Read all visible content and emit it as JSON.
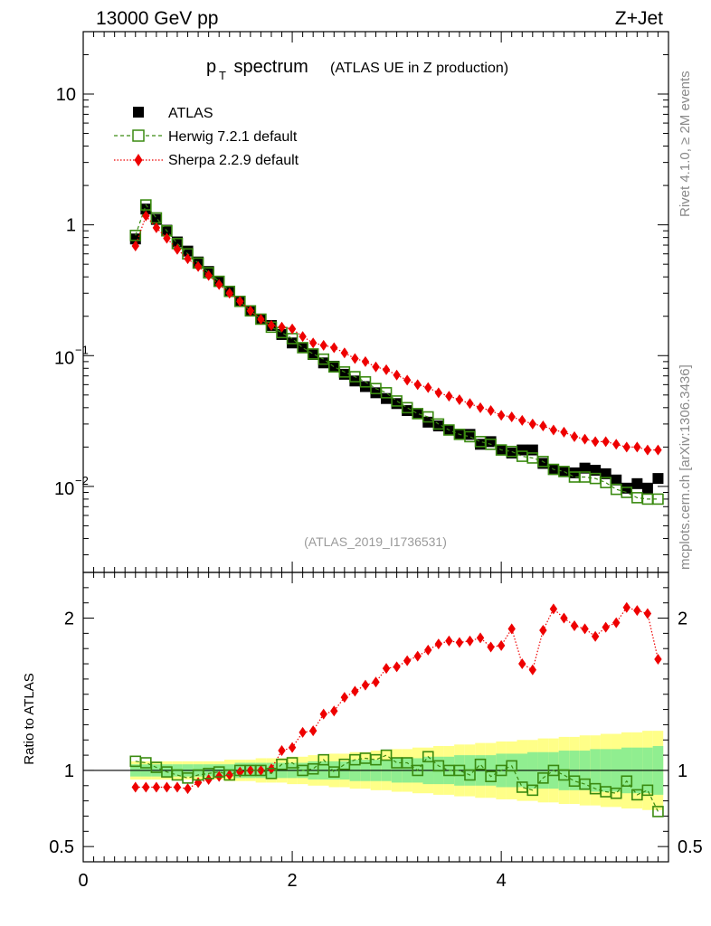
{
  "header": {
    "energy_label": "13000 GeV pp",
    "process_label": "Z+Jet"
  },
  "side_labels": {
    "rivet": "Rivet 4.1.0, ≥ 2M events",
    "mcplots": "mcplots.cern.ch [arXiv:1306.3436]"
  },
  "colors": {
    "data": "#000000",
    "herwig": "#3a8a10",
    "sherpa": "#ee0000",
    "band_inner": "#90ee90",
    "band_outer": "#ffff88"
  },
  "chart_data": [
    {
      "type": "scatter",
      "panel": "main",
      "title": "p_T spectrum",
      "title_main": "p",
      "title_sub": "T",
      "title_word": " spectrum",
      "subtitle": "(ATLAS UE in Z production)",
      "watermark": "(ATLAS_2019_I1736531)",
      "yscale": "log",
      "ylim": [
        0.0022,
        30
      ],
      "xlim": [
        0,
        5.6
      ],
      "y_ticks": [
        {
          "value": 10,
          "base": "10",
          "exp": ""
        },
        {
          "value": 1,
          "base": "1",
          "exp": ""
        },
        {
          "value": 0.1,
          "base": "10",
          "exp": "−1"
        },
        {
          "value": 0.01,
          "base": "10",
          "exp": "−2"
        }
      ],
      "legend": [
        {
          "label": "ATLAS",
          "style": "square-filled"
        },
        {
          "label": "Herwig 7.2.1 default",
          "style": "square-open-dashed"
        },
        {
          "label": "Sherpa 2.2.9 default",
          "style": "diamond-dotted"
        }
      ],
      "x": [
        0.5,
        0.6,
        0.7,
        0.8,
        0.9,
        1.0,
        1.1,
        1.2,
        1.3,
        1.4,
        1.5,
        1.6,
        1.7,
        1.8,
        1.9,
        2.0,
        2.1,
        2.2,
        2.3,
        2.4,
        2.5,
        2.6,
        2.7,
        2.8,
        2.9,
        3.0,
        3.1,
        3.2,
        3.3,
        3.4,
        3.5,
        3.6,
        3.7,
        3.8,
        3.9,
        4.0,
        4.1,
        4.2,
        4.3,
        4.4,
        4.5,
        4.6,
        4.7,
        4.8,
        4.9,
        5.0,
        5.1,
        5.2,
        5.3,
        5.4,
        5.5
      ],
      "series": [
        {
          "name": "ATLAS",
          "values": [
            0.78,
            1.32,
            1.1,
            0.91,
            0.74,
            0.63,
            0.52,
            0.44,
            0.37,
            0.31,
            0.26,
            0.22,
            0.19,
            0.17,
            0.145,
            0.125,
            0.115,
            0.102,
            0.088,
            0.083,
            0.072,
            0.064,
            0.058,
            0.052,
            0.047,
            0.043,
            0.038,
            0.036,
            0.031,
            0.029,
            0.027,
            0.025,
            0.025,
            0.021,
            0.022,
            0.019,
            0.018,
            0.019,
            0.019,
            0.015,
            0.0135,
            0.013,
            0.0127,
            0.0138,
            0.0133,
            0.0125,
            0.0112,
            0.0097,
            0.0105,
            0.0097,
            0.0115
          ]
        },
        {
          "name": "Herwig 7.2.1 default",
          "values": [
            0.83,
            1.42,
            1.13,
            0.9,
            0.72,
            0.6,
            0.51,
            0.43,
            0.37,
            0.31,
            0.26,
            0.22,
            0.19,
            0.165,
            0.15,
            0.135,
            0.115,
            0.103,
            0.094,
            0.082,
            0.075,
            0.069,
            0.063,
            0.056,
            0.052,
            0.045,
            0.04,
            0.036,
            0.034,
            0.03,
            0.027,
            0.025,
            0.024,
            0.022,
            0.021,
            0.019,
            0.0185,
            0.017,
            0.0165,
            0.0155,
            0.0135,
            0.013,
            0.0118,
            0.0118,
            0.0115,
            0.0107,
            0.0095,
            0.009,
            0.0082,
            0.008,
            0.008
          ]
        },
        {
          "name": "Sherpa 2.2.9 default",
          "values": [
            0.69,
            1.17,
            0.95,
            0.79,
            0.65,
            0.55,
            0.48,
            0.41,
            0.35,
            0.3,
            0.26,
            0.22,
            0.19,
            0.17,
            0.165,
            0.16,
            0.14,
            0.125,
            0.12,
            0.115,
            0.105,
            0.095,
            0.09,
            0.082,
            0.078,
            0.071,
            0.065,
            0.06,
            0.057,
            0.052,
            0.049,
            0.046,
            0.043,
            0.04,
            0.038,
            0.035,
            0.034,
            0.032,
            0.03,
            0.029,
            0.027,
            0.026,
            0.024,
            0.023,
            0.022,
            0.022,
            0.021,
            0.02,
            0.02,
            0.019,
            0.019
          ]
        }
      ]
    },
    {
      "type": "scatter",
      "panel": "ratio",
      "ylabel": "Ratio to ATLAS",
      "ylim": [
        0.4,
        2.3
      ],
      "xlim": [
        0,
        5.6
      ],
      "y_ticks": [
        0.5,
        1,
        2
      ],
      "y_tick_labels": [
        "0.5",
        "1",
        "2"
      ],
      "x_ticks": [
        0,
        2,
        4
      ],
      "x_tick_labels": [
        "0",
        "2",
        "4"
      ],
      "reference_line": 1,
      "x": [
        0.5,
        0.6,
        0.7,
        0.8,
        0.9,
        1.0,
        1.1,
        1.2,
        1.3,
        1.4,
        1.5,
        1.6,
        1.7,
        1.8,
        1.9,
        2.0,
        2.1,
        2.2,
        2.3,
        2.4,
        2.5,
        2.6,
        2.7,
        2.8,
        2.9,
        3.0,
        3.1,
        3.2,
        3.3,
        3.4,
        3.5,
        3.6,
        3.7,
        3.8,
        3.9,
        4.0,
        4.1,
        4.2,
        4.3,
        4.4,
        4.5,
        4.6,
        4.7,
        4.8,
        4.9,
        5.0,
        5.1,
        5.2,
        5.3,
        5.4,
        5.5
      ],
      "uncertainty_bands": {
        "inner_half_width": [
          0.04,
          0.04,
          0.04,
          0.04,
          0.04,
          0.04,
          0.04,
          0.04,
          0.04,
          0.04,
          0.05,
          0.05,
          0.05,
          0.05,
          0.05,
          0.05,
          0.05,
          0.06,
          0.06,
          0.06,
          0.06,
          0.07,
          0.07,
          0.07,
          0.07,
          0.08,
          0.08,
          0.08,
          0.09,
          0.09,
          0.09,
          0.1,
          0.1,
          0.1,
          0.1,
          0.11,
          0.11,
          0.11,
          0.12,
          0.12,
          0.12,
          0.13,
          0.13,
          0.13,
          0.14,
          0.14,
          0.14,
          0.15,
          0.15,
          0.15,
          0.16
        ],
        "outer_half_width": [
          0.06,
          0.06,
          0.06,
          0.06,
          0.06,
          0.06,
          0.06,
          0.06,
          0.06,
          0.07,
          0.07,
          0.07,
          0.08,
          0.08,
          0.08,
          0.09,
          0.09,
          0.1,
          0.1,
          0.11,
          0.11,
          0.12,
          0.12,
          0.13,
          0.13,
          0.14,
          0.14,
          0.15,
          0.15,
          0.16,
          0.16,
          0.17,
          0.17,
          0.18,
          0.18,
          0.19,
          0.19,
          0.2,
          0.2,
          0.21,
          0.21,
          0.22,
          0.22,
          0.23,
          0.23,
          0.24,
          0.24,
          0.25,
          0.25,
          0.26,
          0.26
        ]
      },
      "series": [
        {
          "name": "Herwig 7.2.1 default",
          "values": [
            1.06,
            1.05,
            1.02,
            0.99,
            0.97,
            0.95,
            0.97,
            0.98,
            0.99,
            0.97,
            1.0,
            1.0,
            1.0,
            0.98,
            1.04,
            1.05,
            1.0,
            1.01,
            1.07,
            0.99,
            1.04,
            1.07,
            1.08,
            1.07,
            1.1,
            1.05,
            1.05,
            1.0,
            1.09,
            1.03,
            1.0,
            1.0,
            0.97,
            1.04,
            0.96,
            1.0,
            1.03,
            0.89,
            0.87,
            0.95,
            1.0,
            0.97,
            0.93,
            0.91,
            0.88,
            0.86,
            0.85,
            0.93,
            0.84,
            0.87,
            0.73
          ]
        },
        {
          "name": "Sherpa 2.2.9 default",
          "values": [
            0.89,
            0.89,
            0.89,
            0.89,
            0.89,
            0.88,
            0.92,
            0.94,
            0.96,
            0.97,
            0.99,
            1.0,
            1.0,
            1.01,
            1.13,
            1.15,
            1.25,
            1.26,
            1.37,
            1.39,
            1.48,
            1.52,
            1.56,
            1.58,
            1.67,
            1.68,
            1.72,
            1.75,
            1.79,
            1.83,
            1.85,
            1.84,
            1.85,
            1.87,
            1.81,
            1.82,
            1.93,
            1.7,
            1.66,
            1.92,
            2.06,
            2.0,
            1.95,
            1.93,
            1.88,
            1.94,
            1.97,
            2.07,
            2.05,
            2.03,
            1.73
          ]
        }
      ]
    }
  ]
}
